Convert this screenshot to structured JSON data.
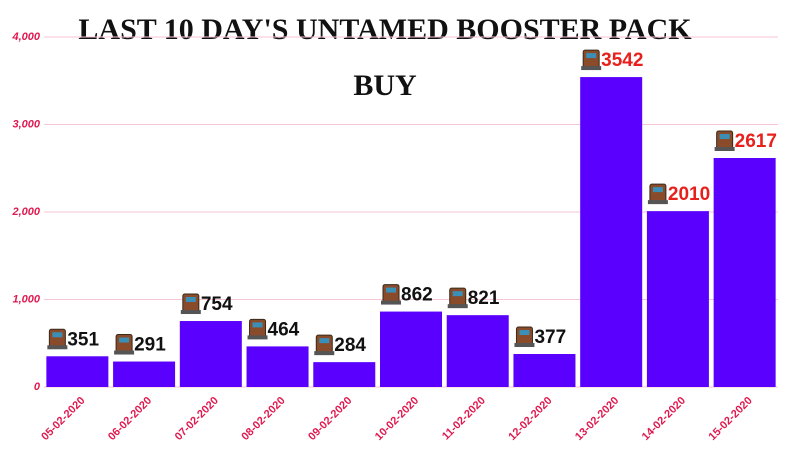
{
  "chart_data": {
    "type": "bar",
    "title": "LAST 10 DAY'S UNTAMED BOOSTER PACK BUY",
    "categories": [
      "05-02-2020",
      "06-02-2020",
      "07-02-2020",
      "08-02-2020",
      "09-02-2020",
      "10-02-2020",
      "11-02-2020",
      "12-02-2020",
      "13-02-2020",
      "14-02-2020",
      "15-02-2020"
    ],
    "values": [
      351,
      291,
      754,
      464,
      284,
      862,
      821,
      377,
      3542,
      2010,
      2617
    ],
    "color": "#5a00ff",
    "value_label_colors": [
      "#111111",
      "#111111",
      "#111111",
      "#111111",
      "#111111",
      "#111111",
      "#111111",
      "#111111",
      "#e8201c",
      "#e8201c",
      "#e8201c"
    ],
    "ylim": [
      0,
      4000
    ],
    "yticks": [
      0,
      {
        "value": 1000,
        "label": "1,000"
      },
      {
        "value": 2000,
        "label": "2,000"
      },
      {
        "value": 3000,
        "label": "3,000"
      },
      {
        "value": 4000,
        "label": "4,000"
      }
    ],
    "grid": true
  }
}
